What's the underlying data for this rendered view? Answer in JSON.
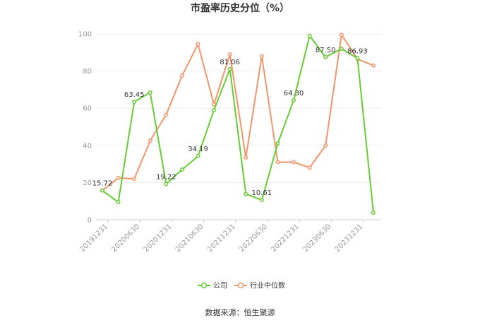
{
  "chart_data": {
    "type": "line",
    "title": "市盈率历史分位（%）",
    "source": "数据来源：恒生聚源",
    "ylim": [
      0,
      100
    ],
    "yticks": [
      0,
      20,
      40,
      60,
      80,
      100
    ],
    "grid": true,
    "legend_position": "bottom",
    "x_tick_labels": [
      "20191231",
      "20200630",
      "20201231",
      "20210630",
      "20211231",
      "20220630",
      "20221231",
      "20230630",
      "20231231"
    ],
    "series": [
      {
        "name": "公司",
        "color": "#66cc33",
        "values": [
          15.72,
          9.5,
          63.45,
          68.5,
          19.22,
          27.0,
          34.19,
          59.0,
          81.06,
          13.8,
          10.61,
          41.0,
          64.3,
          99.0,
          87.5,
          92.0,
          86.93,
          3.8
        ],
        "labels": [
          "15.72",
          "",
          "63.45",
          "",
          "19.22",
          "",
          "34.19",
          "",
          "81.06",
          "",
          "10.61",
          "",
          "64.30",
          "",
          "87.50",
          "",
          "86.93",
          ""
        ]
      },
      {
        "name": "行业中位数",
        "color": "#f0956a",
        "values": [
          15.7,
          22.5,
          22.0,
          42.5,
          56.5,
          77.5,
          94.5,
          62.0,
          89.0,
          33.5,
          88.0,
          31.0,
          31.0,
          28.0,
          40.0,
          99.5,
          86.5,
          83.0
        ],
        "labels": []
      }
    ]
  }
}
